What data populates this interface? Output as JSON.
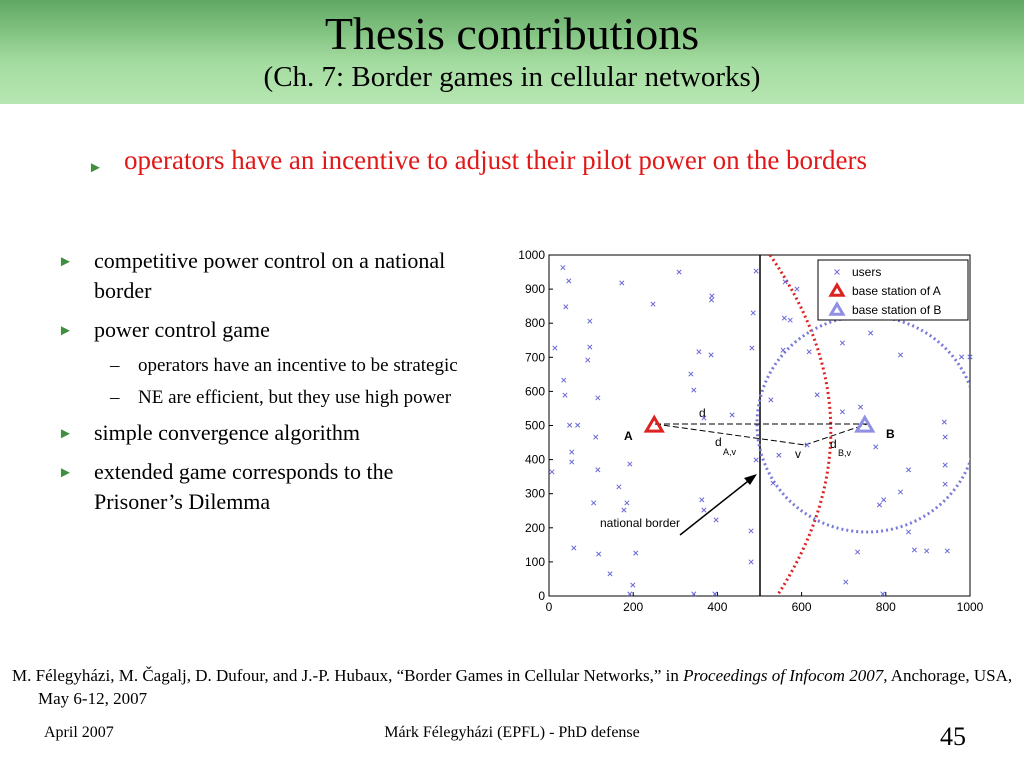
{
  "header": {
    "title": "Thesis contributions",
    "subtitle": "(Ch. 7: Border games in cellular networks)"
  },
  "main_bullet": "operators have an incentive to adjust their pilot power on the borders",
  "bullets": [
    {
      "text": "competitive power control on a national border"
    },
    {
      "text": "power control game",
      "sub": [
        "operators have an incentive to be strategic",
        "NE are efficient, but they use high power"
      ]
    },
    {
      "text": "simple convergence algorithm"
    },
    {
      "text": "extended game corresponds to the Prisoner’s Dilemma"
    }
  ],
  "citation": {
    "authors": "M. Félegyházi, M. Čagalj, D. Dufour, and J.-P. Hubaux, “Border Games in Cellular Networks,” in ",
    "venue": "Proceedings of Infocom 2007,",
    "rest": " Anchorage, USA, May 6-12, 2007"
  },
  "footer": {
    "date": "April 2007",
    "presenter": "Márk Félegyházi (EPFL) - PhD defense",
    "page": "45"
  },
  "chart_data": {
    "type": "scatter",
    "xlim": [
      0,
      1000
    ],
    "ylim": [
      0,
      1000
    ],
    "xticks": [
      0,
      200,
      400,
      600,
      800,
      1000
    ],
    "yticks": [
      0,
      100,
      200,
      300,
      400,
      500,
      600,
      700,
      800,
      900,
      1000
    ],
    "annotations": [
      "A",
      "B",
      "d",
      "d",
      "A,v",
      "v",
      "d",
      "B,v",
      "national border"
    ],
    "series": [
      {
        "name": "users",
        "color": "#6a6ad8",
        "marker": "x",
        "x": [
          33,
          47,
          40,
          14,
          35,
          38,
          49,
          68,
          54,
          54,
          7,
          59,
          97,
          97,
          92,
          116,
          111,
          116,
          106,
          118,
          145,
          173,
          166,
          185,
          178,
          192,
          206,
          199,
          192,
          247,
          309,
          387,
          386,
          356,
          385,
          337,
          344,
          363,
          368,
          368,
          344,
          394,
          397,
          435,
          485,
          482,
          492,
          480,
          480,
          492,
          561,
          589,
          559,
          573,
          556,
          527,
          546,
          532,
          613,
          618,
          637,
          697,
          697,
          740,
          764,
          776,
          785,
          795,
          733,
          705,
          793,
          835,
          854,
          835,
          854,
          868,
          897,
          941,
          941,
          941,
          939,
          946,
          980,
          1000
        ],
        "values": [
          963,
          924,
          848,
          727,
          633,
          589,
          501,
          501,
          422,
          393,
          364,
          141,
          806,
          730,
          692,
          581,
          466,
          370,
          273,
          123,
          65,
          918,
          320,
          273,
          252,
          387,
          126,
          32,
          6,
          856,
          950,
          880,
          868,
          716,
          707,
          651,
          604,
          282,
          252,
          522,
          6,
          6,
          223,
          531,
          830,
          727,
          399,
          191,
          100,
          953,
          921,
          900,
          815,
          809,
          721,
          575,
          413,
          331,
          443,
          716,
          590,
          742,
          540,
          554,
          771,
          437,
          267,
          282,
          129,
          41,
          6,
          707,
          370,
          305,
          188,
          135,
          132,
          384,
          328,
          466,
          510,
          132,
          701,
          701
        ]
      },
      {
        "name": "base station of A",
        "color": "#dd2222",
        "marker": "triangle",
        "x": [
          250
        ],
        "values": [
          500
        ]
      },
      {
        "name": "base station of B",
        "color": "#8f8fe6",
        "marker": "triangle",
        "x": [
          750
        ],
        "values": [
          500
        ]
      }
    ]
  }
}
